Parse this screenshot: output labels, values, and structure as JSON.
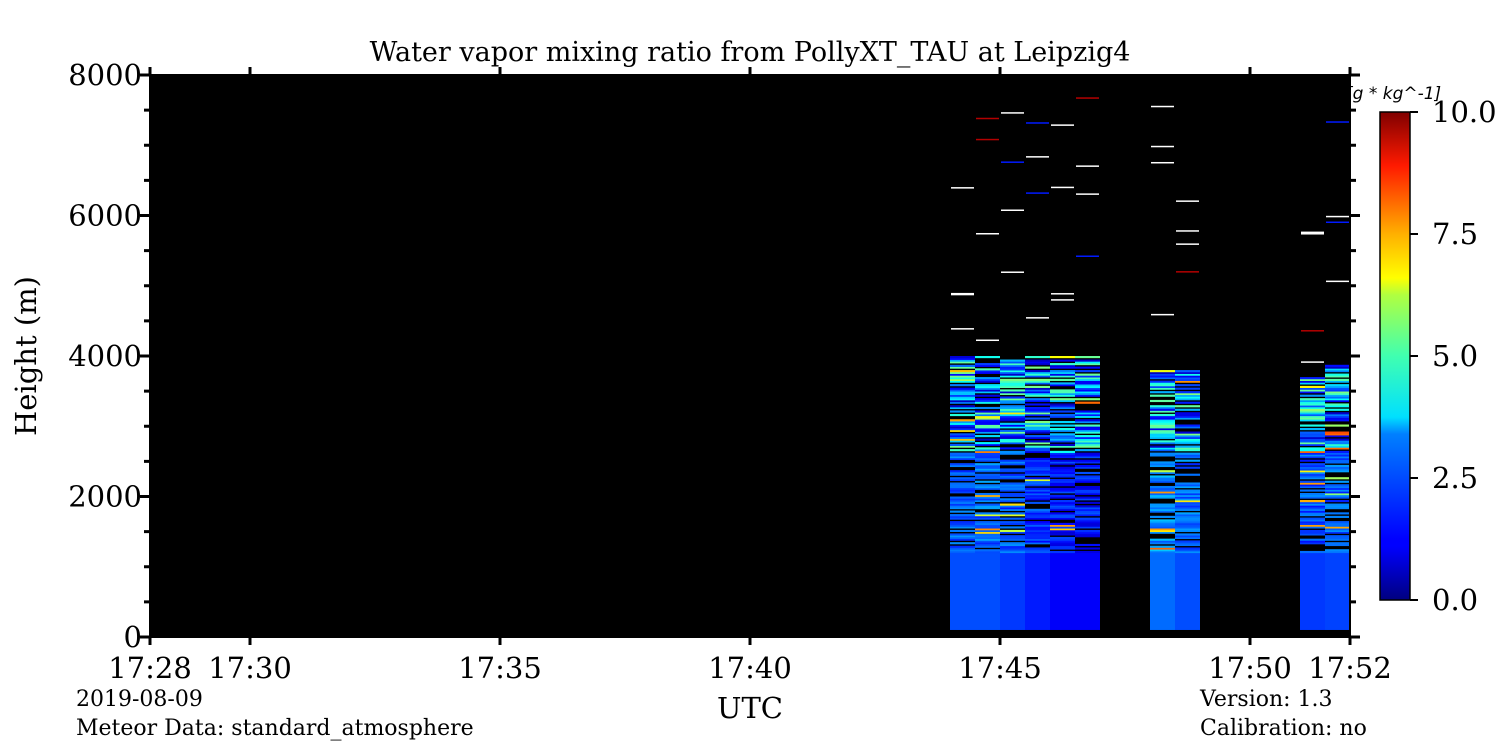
{
  "chart_data": {
    "type": "heatmap",
    "title": "Water vapor mixing ratio from PollyXT_TAU at Leipzig4",
    "xlabel": "UTC",
    "ylabel": "Height (m)",
    "x_tick_labels": [
      "17:28",
      "17:30",
      "17:35",
      "17:40",
      "17:45",
      "17:50",
      "17:52"
    ],
    "x_tick_minutes": [
      0,
      2,
      7,
      12,
      17,
      22,
      24
    ],
    "y_ticks": [
      0,
      2000,
      4000,
      6000,
      8000
    ],
    "xlim_minutes": [
      0,
      24
    ],
    "ylim": [
      0,
      8000
    ],
    "colorbar": {
      "label": "[g * kg^-1]",
      "ticks": [
        0.0,
        2.5,
        5.0,
        7.5,
        10.0
      ],
      "tick_labels": [
        "0.0",
        "2.5",
        "5.0",
        "7.5",
        "10.0"
      ],
      "range": [
        0,
        10
      ],
      "colormap": "jet"
    },
    "background_color": "#000000",
    "profiles": [
      {
        "start_minute": 16.0,
        "end_minute": 16.5,
        "low_layer_value": 2.0,
        "top_height": 4000
      },
      {
        "start_minute": 16.5,
        "end_minute": 17.0,
        "low_layer_value": 2.0,
        "top_height": 4000
      },
      {
        "start_minute": 17.0,
        "end_minute": 17.5,
        "low_layer_value": 1.8,
        "top_height": 4000
      },
      {
        "start_minute": 17.5,
        "end_minute": 18.0,
        "low_layer_value": 1.5,
        "top_height": 4000
      },
      {
        "start_minute": 18.0,
        "end_minute": 18.5,
        "low_layer_value": 1.2,
        "top_height": 4000
      },
      {
        "start_minute": 18.5,
        "end_minute": 19.0,
        "low_layer_value": 1.2,
        "top_height": 4000
      },
      {
        "start_minute": 20.0,
        "end_minute": 20.5,
        "low_layer_value": 2.3,
        "top_height": 3800
      },
      {
        "start_minute": 20.5,
        "end_minute": 21.0,
        "low_layer_value": 2.0,
        "top_height": 3800
      },
      {
        "start_minute": 23.0,
        "end_minute": 23.5,
        "low_layer_value": 1.8,
        "top_height": 3700
      },
      {
        "start_minute": 23.5,
        "end_minute": 24.0,
        "low_layer_value": 1.9,
        "top_height": 3900
      }
    ]
  },
  "footer": {
    "date": "2019-08-09",
    "meteor": "Meteor Data: standard_atmosphere",
    "version": "Version: 1.3",
    "calibration": "Calibration: no"
  }
}
